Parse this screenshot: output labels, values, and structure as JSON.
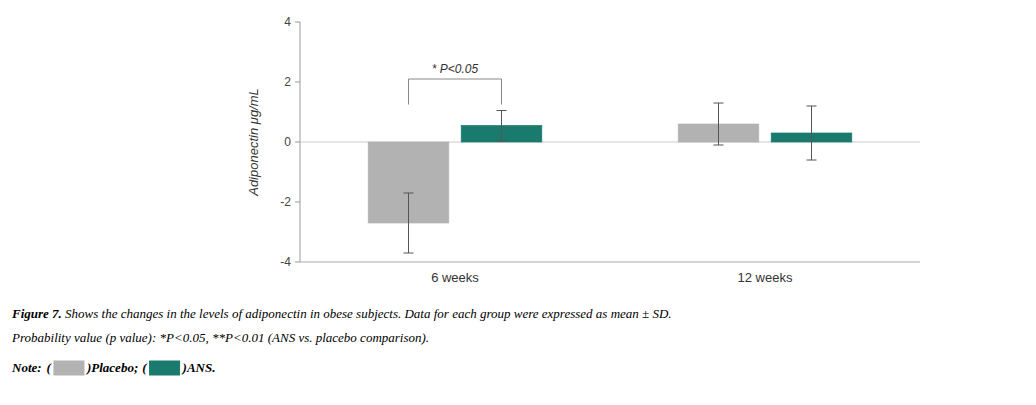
{
  "chart_data": {
    "type": "bar",
    "categories": [
      "6 weeks",
      "12 weeks"
    ],
    "series": [
      {
        "name": "Placebo",
        "color": "#b2b2b2",
        "values": [
          -2.7,
          0.6
        ],
        "errors": [
          1.0,
          0.7
        ]
      },
      {
        "name": "ANS",
        "color": "#1a7a6e",
        "values": [
          0.55,
          0.3
        ],
        "errors": [
          0.5,
          0.9
        ]
      }
    ],
    "ylabel": "Adiponectin μg/mL",
    "ylim": [
      -4,
      4
    ],
    "yticks": [
      -4,
      -2,
      0,
      2,
      4
    ],
    "grid": false,
    "annotations": [
      {
        "text": "* P<0.05",
        "y": 2.1
      }
    ],
    "caption_label": "Figure 7.",
    "caption": [
      " Shows the changes in the levels of adiponectin in obese subjects. Data for each group were expressed as mean ± SD.",
      "Probability value (p value): *P<0.05, **P<0.01 (ANS vs. placebo comparison)."
    ],
    "note": {
      "label": "Note:",
      "open": "(",
      "close": ")",
      "separator": ";",
      "end": "."
    }
  }
}
